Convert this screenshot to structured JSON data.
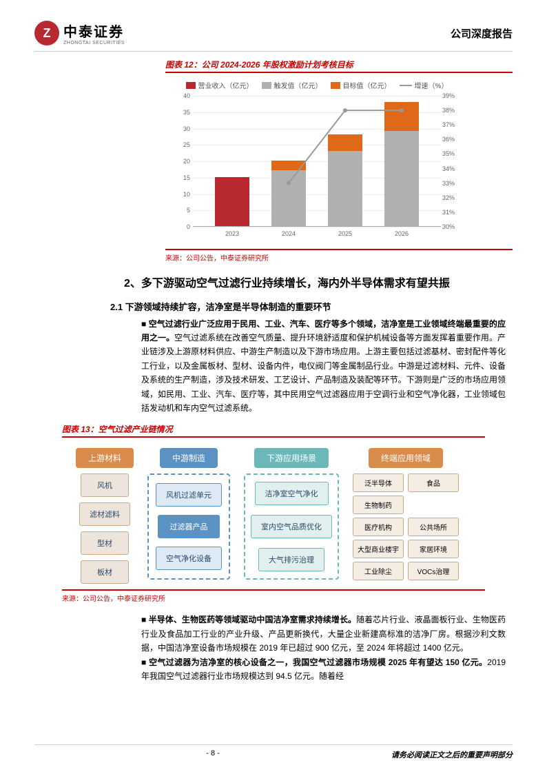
{
  "header": {
    "logo_cn": "中泰证券",
    "logo_en": "ZHONGTAI SECURITIES",
    "logo_char": "Z",
    "title": "公司深度报告"
  },
  "chart12": {
    "caption": "图表 12：公司 2024-2026 年股权激励计划考核目标",
    "legend": {
      "rev": "营业收入（亿元）",
      "trigger": "触发值（亿元）",
      "target": "目标值（亿元）",
      "growth": "增速（%）"
    },
    "type": "bar+line",
    "categories": [
      "2023",
      "2024",
      "2025",
      "2026"
    ],
    "bars": {
      "revenue_color": "#b8292f",
      "trigger_color": "#b0b0b0",
      "target_color": "#e06919",
      "2023": {
        "revenue": 15,
        "trigger": 0,
        "target": 0
      },
      "2024": {
        "revenue": 0,
        "trigger": 17,
        "target": 3
      },
      "2025": {
        "revenue": 0,
        "trigger": 23,
        "target": 5
      },
      "2026": {
        "revenue": 0,
        "trigger": 29,
        "target": 9
      }
    },
    "line_color": "#999999",
    "growth_values": [
      null,
      33,
      38,
      38
    ],
    "y_left": {
      "min": 0,
      "max": 40,
      "step": 5
    },
    "y_right": {
      "min": 30,
      "max": 39,
      "step": 1
    },
    "source": "来源：公司公告，中泰证券研究所"
  },
  "section2": {
    "heading": "2、多下游驱动空气过滤行业持续增长，海内外半导体需求有望共振",
    "sub21": "2.1 下游领域持续扩容，洁净室是半导体制造的重要环节",
    "p1_bold": "空气过滤行业广泛应用于民用、工业、汽车、医疗等多个领域，洁净室是工业领域终端最重要的应用之一。",
    "p1_rest": "空气过滤系统在改善空气质量、提升环境舒适度和保护机械设备等方面发挥着重要作用。产业链涉及上游原材料供应、中游生产制造以及下游市场应用。上游主要包括过滤基材、密封配件等化工行业，以及金属板材、型材、设备内件，电仪阀门等金属制品行业。中游是过滤材料、元件、设备及系统的生产制造，涉及技术研发、工艺设计、产品制造及装配等环节。下游则是广泛的市场应用领域，如民用、工业、汽车、医疗等，其中民用空气过滤器应用于空调行业和空气净化器，工业领域包括发动机和车内空气过滤系统。"
  },
  "fig13": {
    "caption": "图表 13：空气过滤产业链情况",
    "cols": {
      "upstream": {
        "label": "上游材料",
        "color": "#d88b4a",
        "bg": "#ede5dc",
        "border": "#c9a985",
        "items": [
          "风机",
          "滤材滤料",
          "型材",
          "板材"
        ]
      },
      "mid": {
        "label": "中游制造",
        "color": "#5b92c4",
        "bg": "#dfe8f0",
        "border": "#5b92c4",
        "items": [
          "风机过滤单元",
          "过滤器产品",
          "空气净化设备"
        ]
      },
      "down": {
        "label": "下游应用场景",
        "color": "#6ab8b8",
        "bg": "#e2efef",
        "border": "#6ab8b8",
        "items": [
          "洁净室空气净化",
          "室内空气品质优化",
          "大气排污治理"
        ]
      },
      "term": {
        "label": "终端应用领域",
        "color": "#d88b4a",
        "bg": "#f4ede4",
        "border": "#c9a985",
        "rows": [
          [
            "泛半导体",
            "食品"
          ],
          [
            "生物制药",
            ""
          ],
          [
            "医疗机构",
            "公共场所"
          ],
          [
            "大型商业楼宇",
            "家居环境"
          ],
          [
            "工业除尘",
            "VOCs治理"
          ]
        ]
      }
    },
    "source": "来源：公司公告，中泰证券研究所"
  },
  "paras": {
    "p2_bold": "半导体、生物医药等领域驱动中国洁净室需求持续增长。",
    "p2_rest": "随着芯片行业、液晶面板行业、生物医药行业及食品加工行业的产业升级、产品更新换代，大量企业新建高标准的洁净厂房。根据沙利文数据，中国洁净室设备市场规模在 2019 年已超过 900 亿元，至 2024 年将超过 1400 亿元。",
    "p3_bold": "空气过滤器为洁净室的核心设备之一，我国空气过滤器市场规模 2025 年有望达 150 亿元。",
    "p3_rest": "2019 年我国空气过滤器行业市场规模达到 94.5 亿元。随着经"
  },
  "footer": {
    "page": "- 8 -",
    "disclaimer": "请务必阅读正文之后的重要声明部分"
  }
}
